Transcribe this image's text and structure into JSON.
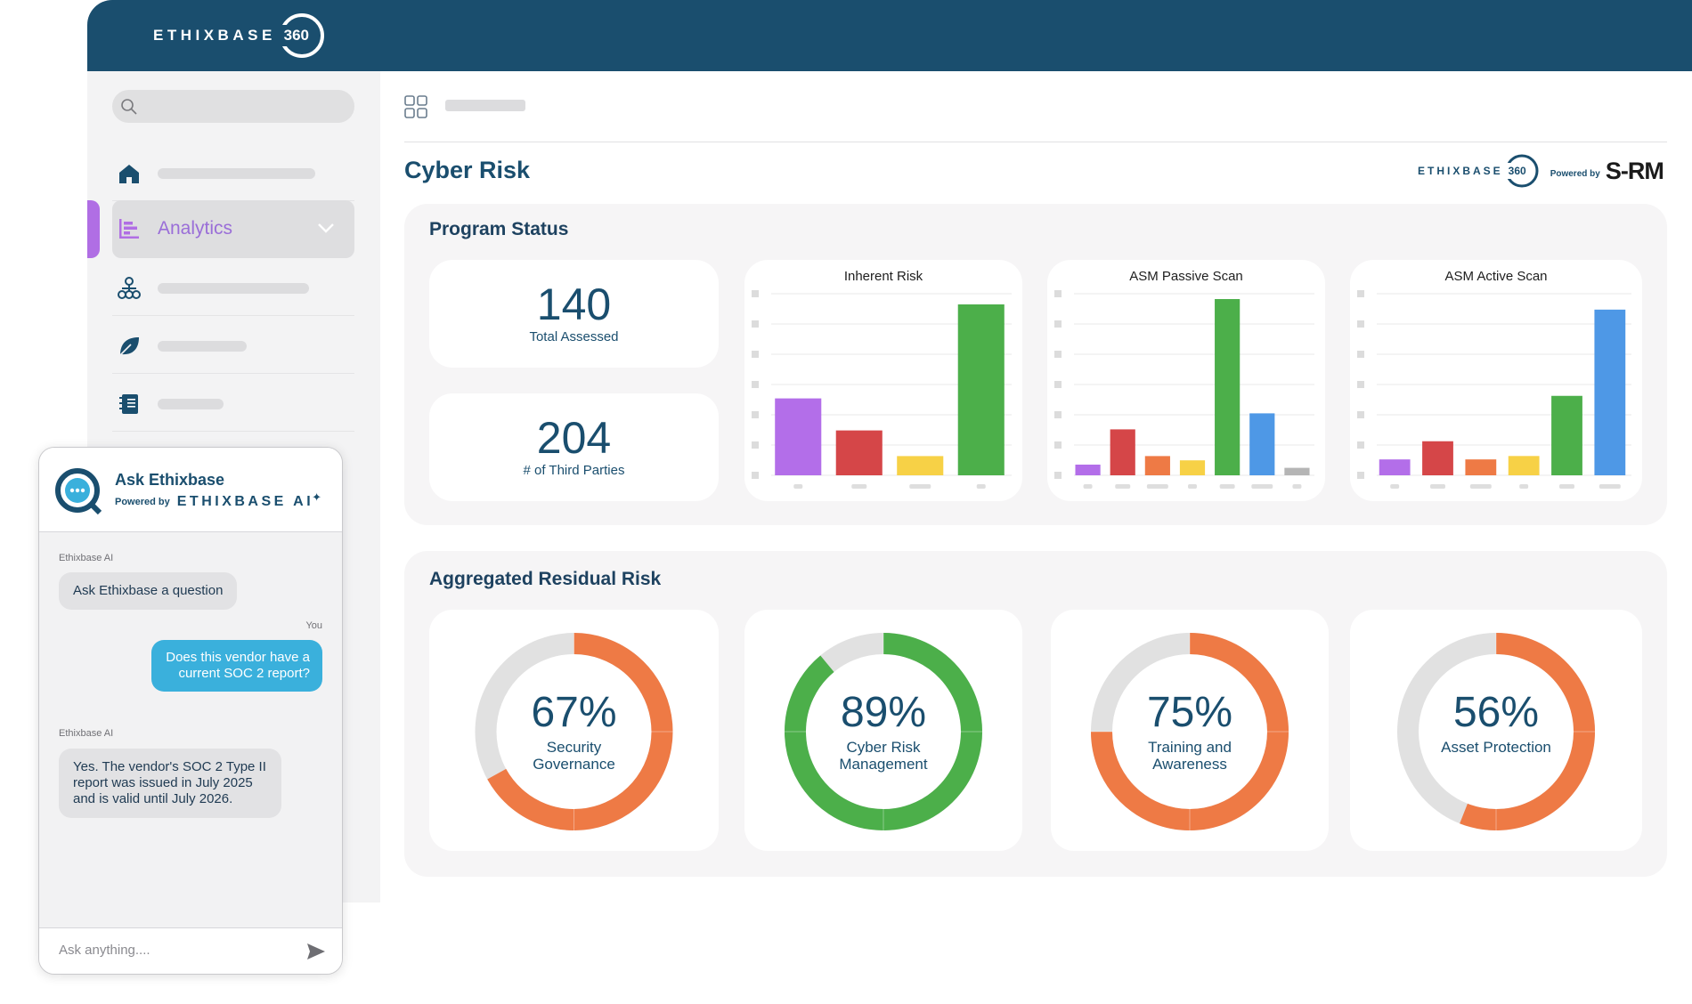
{
  "brand": {
    "word": "ETHIXBASE",
    "number": "360"
  },
  "colors": {
    "header": "#1a4e6e",
    "accent_purple": "#9a6ed8",
    "chat_blue": "#3ab0dc"
  },
  "sidebar": {
    "active_item": {
      "label": "Analytics",
      "icon": "bar-chart-icon"
    },
    "icons": [
      "home-icon",
      "org-chart-icon",
      "leaf-icon",
      "notebook-icon"
    ]
  },
  "page": {
    "title": "Cyber Risk"
  },
  "partner": {
    "word": "ETHIXBASE",
    "number": "360",
    "powered_by": "Powered by",
    "srm": "S-RM"
  },
  "program_status": {
    "title": "Program Status",
    "stats": [
      {
        "value": "140",
        "label": "Total Assessed"
      },
      {
        "value": "204",
        "label": "# of Third Parties"
      }
    ]
  },
  "chart_data": [
    {
      "type": "bar",
      "title": "Inherent Risk",
      "values": [
        72,
        42,
        18,
        160
      ],
      "ylim": [
        0,
        170
      ],
      "colors": [
        "#b36ee9",
        "#d54648",
        "#f7d146",
        "#4caf4a"
      ]
    },
    {
      "type": "bar",
      "title": "ASM Passive Scan",
      "values": [
        10,
        43,
        18,
        14,
        165,
        58,
        7
      ],
      "ylim": [
        0,
        170
      ],
      "colors": [
        "#b36ee9",
        "#d54648",
        "#ee7a45",
        "#f7d146",
        "#4caf4a",
        "#4e98e6",
        "#b5b5b5"
      ]
    },
    {
      "type": "bar",
      "title": "ASM Active Scan",
      "values": [
        14,
        30,
        14,
        17,
        70,
        146
      ],
      "ylim": [
        0,
        160
      ],
      "colors": [
        "#b36ee9",
        "#d54648",
        "#ee7a45",
        "#f7d146",
        "#4caf4a",
        "#4e98e6"
      ]
    }
  ],
  "residual": {
    "title": "Aggregated Residual Risk",
    "donuts": [
      {
        "pct": "67%",
        "value": 67,
        "label1": "Security",
        "label2": "Governance",
        "color": "#ee7a45"
      },
      {
        "pct": "89%",
        "value": 89,
        "label1": "Cyber Risk",
        "label2": "Management",
        "color": "#4caf4a"
      },
      {
        "pct": "75%",
        "value": 75,
        "label1": "Training and",
        "label2": "Awareness",
        "color": "#ee7a45"
      },
      {
        "pct": "56%",
        "value": 56,
        "label1": "Asset Protection",
        "label2": "",
        "color": "#ee7a45"
      }
    ]
  },
  "chat": {
    "title": "Ask Ethixbase",
    "powered_by": "Powered by",
    "powered_word": "ETHIXBASE AI",
    "messages": [
      {
        "sender": "Ethixbase AI",
        "text": "Ask Ethixbase a question"
      },
      {
        "sender": "You",
        "text": "Does this vendor have a current SOC 2 report?"
      },
      {
        "sender": "Ethixbase AI",
        "text": "Yes. The vendor's SOC 2 Type II report was issued in July 2025 and is valid until July 2026."
      }
    ],
    "input_placeholder": "Ask anything...."
  }
}
